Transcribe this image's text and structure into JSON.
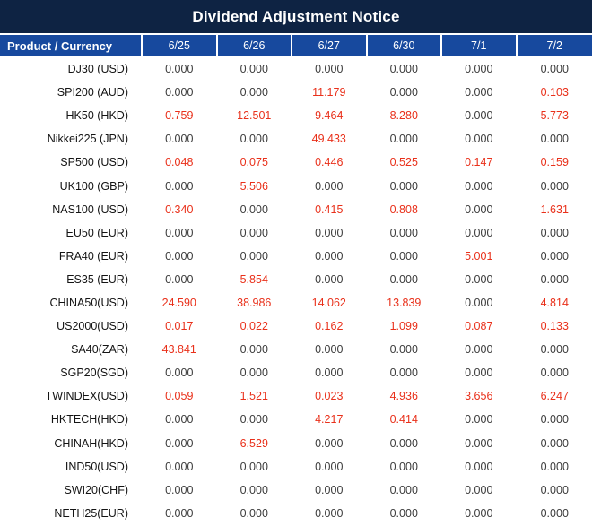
{
  "title": "Dividend Adjustment Notice",
  "colors": {
    "title_bg": "#0e2343",
    "header_bg": "#17499e",
    "label_column_gray": "#d3d4d6",
    "value_cell_gray": "#e8e8e8",
    "highlight_red": "#e9301a",
    "number_black": "#3c3c3c"
  },
  "table": {
    "header": [
      "Product / Currency",
      "6/25",
      "6/26",
      "6/27",
      "6/30",
      "7/1",
      "7/2"
    ],
    "rows": [
      {
        "product": "DJ30 (USD)",
        "values": [
          "0.000",
          "0.000",
          "0.000",
          "0.000",
          "0.000",
          "0.000"
        ]
      },
      {
        "product": "SPI200 (AUD)",
        "values": [
          "0.000",
          "0.000",
          "11.179",
          "0.000",
          "0.000",
          "0.103"
        ]
      },
      {
        "product": "HK50 (HKD)",
        "values": [
          "0.759",
          "12.501",
          "9.464",
          "8.280",
          "0.000",
          "5.773"
        ]
      },
      {
        "product": "Nikkei225 (JPN)",
        "values": [
          "0.000",
          "0.000",
          "49.433",
          "0.000",
          "0.000",
          "0.000"
        ]
      },
      {
        "product": "SP500 (USD)",
        "values": [
          "0.048",
          "0.075",
          "0.446",
          "0.525",
          "0.147",
          "0.159"
        ]
      },
      {
        "product": "UK100 (GBP)",
        "values": [
          "0.000",
          "5.506",
          "0.000",
          "0.000",
          "0.000",
          "0.000"
        ]
      },
      {
        "product": "NAS100 (USD)",
        "values": [
          "0.340",
          "0.000",
          "0.415",
          "0.808",
          "0.000",
          "1.631"
        ]
      },
      {
        "product": "EU50 (EUR)",
        "values": [
          "0.000",
          "0.000",
          "0.000",
          "0.000",
          "0.000",
          "0.000"
        ]
      },
      {
        "product": "FRA40 (EUR)",
        "values": [
          "0.000",
          "0.000",
          "0.000",
          "0.000",
          "5.001",
          "0.000"
        ]
      },
      {
        "product": "ES35 (EUR)",
        "values": [
          "0.000",
          "5.854",
          "0.000",
          "0.000",
          "0.000",
          "0.000"
        ]
      },
      {
        "product": "CHINA50(USD)",
        "values": [
          "24.590",
          "38.986",
          "14.062",
          "13.839",
          "0.000",
          "4.814"
        ]
      },
      {
        "product": "US2000(USD)",
        "values": [
          "0.017",
          "0.022",
          "0.162",
          "1.099",
          "0.087",
          "0.133"
        ]
      },
      {
        "product": "SA40(ZAR)",
        "values": [
          "43.841",
          "0.000",
          "0.000",
          "0.000",
          "0.000",
          "0.000"
        ]
      },
      {
        "product": "SGP20(SGD)",
        "values": [
          "0.000",
          "0.000",
          "0.000",
          "0.000",
          "0.000",
          "0.000"
        ]
      },
      {
        "product": "TWINDEX(USD)",
        "values": [
          "0.059",
          "1.521",
          "0.023",
          "4.936",
          "3.656",
          "6.247"
        ]
      },
      {
        "product": "HKTECH(HKD)",
        "values": [
          "0.000",
          "0.000",
          "4.217",
          "0.414",
          "0.000",
          "0.000"
        ]
      },
      {
        "product": "CHINAH(HKD)",
        "values": [
          "0.000",
          "6.529",
          "0.000",
          "0.000",
          "0.000",
          "0.000"
        ]
      },
      {
        "product": "IND50(USD)",
        "values": [
          "0.000",
          "0.000",
          "0.000",
          "0.000",
          "0.000",
          "0.000"
        ]
      },
      {
        "product": "SWI20(CHF)",
        "values": [
          "0.000",
          "0.000",
          "0.000",
          "0.000",
          "0.000",
          "0.000"
        ]
      },
      {
        "product": "NETH25(EUR)",
        "values": [
          "0.000",
          "0.000",
          "0.000",
          "0.000",
          "0.000",
          "0.000"
        ]
      }
    ]
  }
}
